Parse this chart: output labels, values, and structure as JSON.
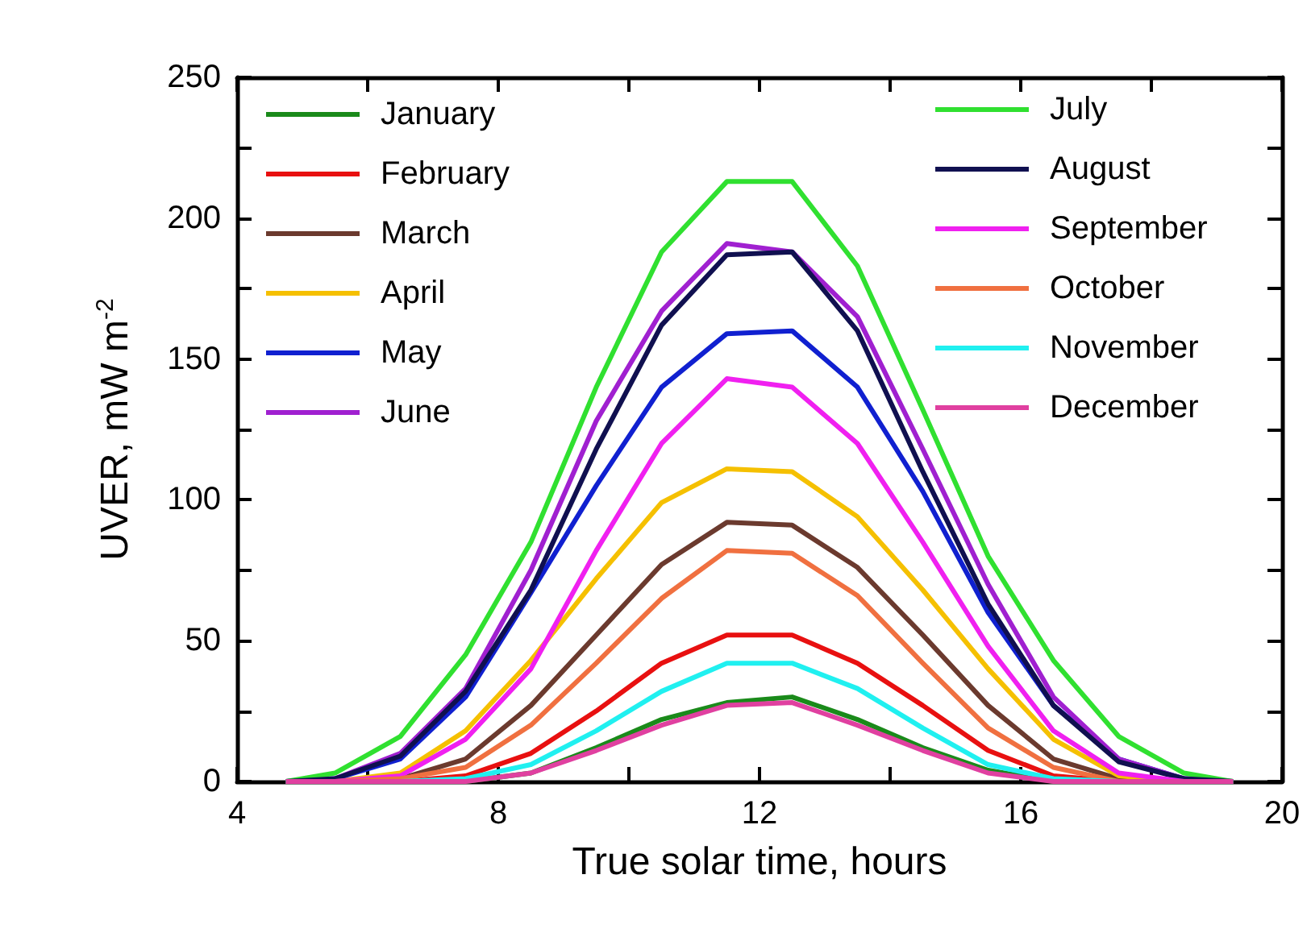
{
  "chart_data": {
    "type": "line",
    "xlabel": "True solar time, hours",
    "ylabel": "UVER, mW m$^{-2}$",
    "x": [
      4.75,
      5.5,
      6.5,
      7.5,
      8.5,
      9.5,
      10.5,
      11.5,
      12.5,
      13.5,
      14.5,
      15.5,
      16.5,
      17.5,
      18.5,
      19.25
    ],
    "xlim": [
      4,
      20
    ],
    "xticks": [
      4,
      {
        "value": 6,
        "label": null
      },
      8,
      {
        "value": 10,
        "label": null
      },
      12,
      {
        "value": 14,
        "label": null
      },
      16,
      {
        "value": 18,
        "label": null
      },
      20
    ],
    "ylim": [
      0,
      250
    ],
    "yticks": [
      0,
      {
        "value": 25,
        "label": null
      },
      50,
      {
        "value": 75,
        "label": null
      },
      100,
      {
        "value": 125,
        "label": null
      },
      150,
      {
        "value": 175,
        "label": null
      },
      200,
      {
        "value": 225,
        "label": null
      },
      250
    ],
    "grid": false,
    "legend": "top",
    "marker": "none",
    "line_style": "solid",
    "series": [
      {
        "name": "January",
        "color": "#1a8a1a",
        "values": [
          0,
          0,
          0,
          0,
          3,
          12,
          22,
          28,
          30,
          22,
          12,
          4,
          0,
          0,
          0,
          0
        ]
      },
      {
        "name": "February",
        "color": "#e81010",
        "values": [
          0,
          0,
          0,
          2,
          10,
          25,
          42,
          52,
          52,
          42,
          27,
          11,
          2,
          0,
          0,
          0
        ]
      },
      {
        "name": "March",
        "color": "#6b3a2e",
        "values": [
          0,
          0,
          1,
          8,
          27,
          52,
          77,
          92,
          91,
          76,
          52,
          27,
          8,
          1,
          0,
          0
        ]
      },
      {
        "name": "April",
        "color": "#f5c000",
        "values": [
          0,
          0,
          3,
          18,
          43,
          72,
          99,
          111,
          110,
          94,
          68,
          40,
          15,
          2,
          0,
          0
        ]
      },
      {
        "name": "May",
        "color": "#1020d0",
        "values": [
          0,
          1,
          8,
          30,
          67,
          105,
          140,
          159,
          160,
          140,
          103,
          60,
          27,
          8,
          1,
          0
        ]
      },
      {
        "name": "June",
        "color": "#a020d0",
        "values": [
          0,
          1,
          10,
          33,
          75,
          128,
          167,
          191,
          188,
          165,
          118,
          70,
          30,
          8,
          1,
          0
        ]
      },
      {
        "name": "July",
        "color": "#30e030",
        "values": [
          0,
          3,
          16,
          45,
          85,
          140,
          188,
          213,
          213,
          183,
          132,
          80,
          43,
          16,
          3,
          0
        ]
      },
      {
        "name": "August",
        "color": "#101050",
        "values": [
          0,
          1,
          9,
          32,
          68,
          118,
          162,
          187,
          188,
          160,
          110,
          63,
          27,
          7,
          1,
          0
        ]
      },
      {
        "name": "September",
        "color": "#f020f0",
        "values": [
          0,
          0,
          2,
          15,
          40,
          82,
          120,
          143,
          140,
          120,
          85,
          48,
          18,
          3,
          0,
          0
        ]
      },
      {
        "name": "October",
        "color": "#f07040",
        "values": [
          0,
          0,
          1,
          5,
          20,
          42,
          65,
          82,
          81,
          66,
          42,
          19,
          5,
          0,
          0,
          0
        ]
      },
      {
        "name": "November",
        "color": "#20f0f0",
        "values": [
          0,
          0,
          0,
          1,
          6,
          18,
          32,
          42,
          42,
          33,
          19,
          6,
          1,
          0,
          0,
          0
        ]
      },
      {
        "name": "December",
        "color": "#e040a0",
        "values": [
          0,
          0,
          0,
          0,
          3,
          11,
          20,
          27,
          28,
          20,
          11,
          3,
          0,
          0,
          0,
          0
        ]
      }
    ]
  }
}
